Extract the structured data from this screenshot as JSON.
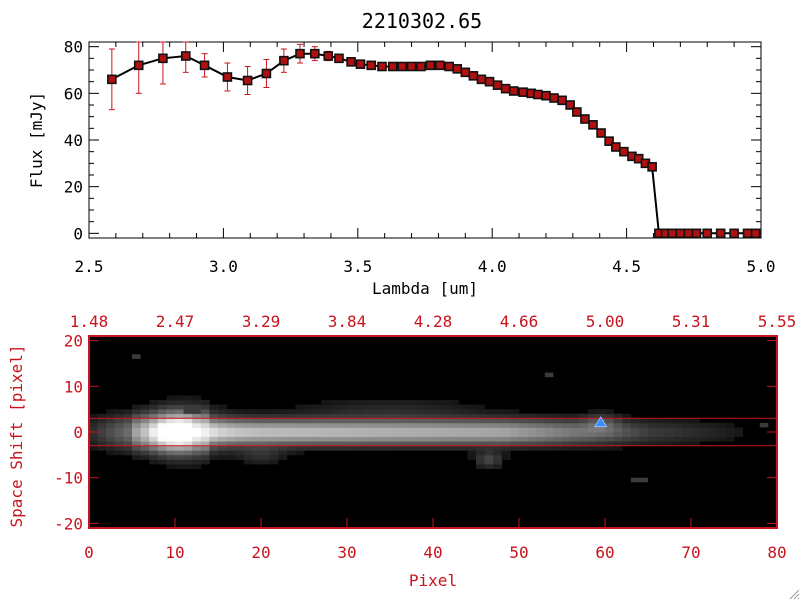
{
  "colors": {
    "background": "#ffffff",
    "axis_black": "#000000",
    "accent_red": "#c8141e",
    "marker_red": "#b01010",
    "marker_edge": "#111111",
    "image_bg": "#000000",
    "peak_marker": "#3c8cff"
  },
  "chart_data": [
    {
      "type": "line",
      "title": "2210302.65",
      "xlabel": "Lambda [um]",
      "ylabel": "Flux [mJy]",
      "xlim": [
        2.5,
        5.0
      ],
      "ylim": [
        -2,
        82
      ],
      "xticks": [
        2.5,
        3.0,
        3.5,
        4.0,
        4.5,
        5.0
      ],
      "xtick_labels": [
        "2.5",
        "3.0",
        "3.5",
        "4.0",
        "4.5",
        "5.0"
      ],
      "yticks": [
        0,
        20,
        40,
        60,
        80
      ],
      "ytick_labels": [
        "0",
        "20",
        "40",
        "60",
        "80"
      ],
      "grid": false,
      "series": [
        {
          "x": [
            2.585,
            2.685,
            2.775,
            2.86,
            2.93,
            3.015,
            3.09,
            3.16,
            3.225,
            3.285,
            3.34,
            3.39,
            3.43,
            3.475,
            3.51,
            3.55,
            3.59,
            3.63,
            3.665,
            3.7,
            3.735,
            3.77,
            3.805,
            3.84,
            3.87,
            3.9,
            3.93,
            3.96,
            3.99,
            4.02,
            4.05,
            4.08,
            4.115,
            4.145,
            4.17,
            4.2,
            4.23,
            4.26,
            4.29,
            4.315,
            4.345,
            4.375,
            4.405,
            4.435,
            4.46,
            4.49,
            4.52,
            4.545,
            4.57,
            4.595,
            4.62,
            4.645,
            4.67,
            4.7,
            4.73,
            4.76,
            4.8,
            4.85,
            4.9,
            4.95,
            4.98
          ],
          "y": [
            66,
            72,
            75,
            76,
            72,
            67,
            65.5,
            68.5,
            74,
            77,
            77,
            76,
            75,
            73.5,
            72.5,
            72,
            71.5,
            71.5,
            71.5,
            71.5,
            71.5,
            72,
            72,
            71.5,
            70.5,
            69,
            67.5,
            66,
            65,
            63.5,
            62,
            61,
            60.5,
            60,
            59.5,
            59,
            58,
            57,
            55,
            52,
            49,
            46.5,
            43,
            39.5,
            37,
            35,
            33,
            32,
            30,
            28.5,
            0,
            0,
            0,
            0,
            0,
            0,
            0,
            0,
            0,
            0,
            0
          ],
          "yerr": [
            13,
            12,
            11,
            7,
            5,
            6,
            6,
            6,
            5,
            4,
            3,
            2,
            1,
            1,
            1,
            1,
            1,
            1,
            1,
            1,
            1,
            1,
            1,
            1,
            1,
            1,
            1,
            1,
            1,
            1,
            1,
            1,
            1,
            1,
            1,
            1,
            1,
            1,
            1,
            1,
            1,
            1,
            1,
            1,
            1,
            1,
            1,
            1,
            1,
            1,
            1,
            1,
            1,
            1,
            1,
            1,
            1,
            1,
            1,
            1,
            1
          ]
        }
      ]
    },
    {
      "type": "heatmap",
      "xlabel": "Pixel",
      "ylabel": "Space Shift [pixel]",
      "xlim": [
        0,
        80
      ],
      "ylim": [
        -21,
        21
      ],
      "xticks": [
        0,
        10,
        20,
        30,
        40,
        50,
        60,
        70,
        80
      ],
      "xtick_labels": [
        "0",
        "10",
        "20",
        "30",
        "40",
        "50",
        "60",
        "70",
        "80"
      ],
      "yticks": [
        -20,
        -10,
        0,
        10,
        20
      ],
      "ytick_labels": [
        "-20",
        "-10",
        "0",
        "10",
        "20"
      ],
      "top_axis_ticks": [
        0,
        10,
        20,
        30,
        40,
        50,
        60,
        70,
        80
      ],
      "top_axis_labels": [
        "1.48",
        "2.47",
        "3.29",
        "3.84",
        "4.28",
        "4.66",
        "5.00",
        "5.31",
        "5.55"
      ],
      "extraction_lines_y": [
        3,
        -3
      ],
      "peak_marker": {
        "x": 59.5,
        "y": 2
      },
      "grid": false
    }
  ]
}
